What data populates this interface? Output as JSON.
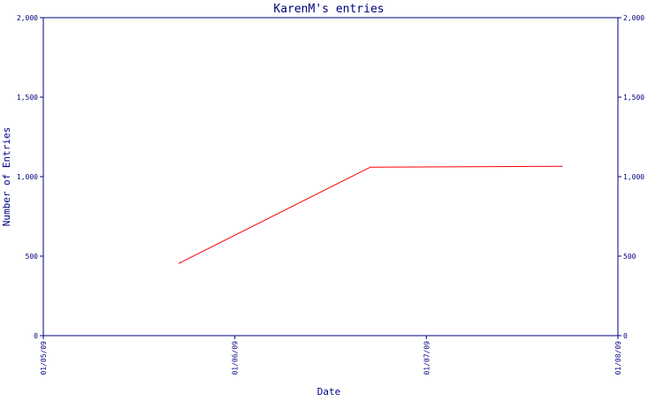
{
  "chart_data": {
    "type": "line",
    "title": "KarenM's entries",
    "xlabel": "Date",
    "ylabel": "Number of Entries",
    "x_ticks": [
      "01/05/09",
      "01/06/09",
      "01/07/09",
      "01/08/09"
    ],
    "y_ticks": [
      "0",
      "500",
      "1,000",
      "1,500",
      "2,000"
    ],
    "y_ticks_right": [
      "0",
      "500",
      "1,000",
      "1,500",
      "2,000"
    ],
    "xlim": [
      "01/05/09",
      "01/08/09"
    ],
    "ylim": [
      0,
      2000
    ],
    "grid": false,
    "series": [
      {
        "x": [
          "01/05/09 17:00",
          "01/06/09 17:00",
          "01/07/09 17:00"
        ],
        "values": [
          455,
          1060,
          1065
        ]
      }
    ],
    "colors": {
      "line": "#ff0000",
      "axis": "#000080",
      "text": "#000080",
      "background": "#ffffff"
    }
  }
}
